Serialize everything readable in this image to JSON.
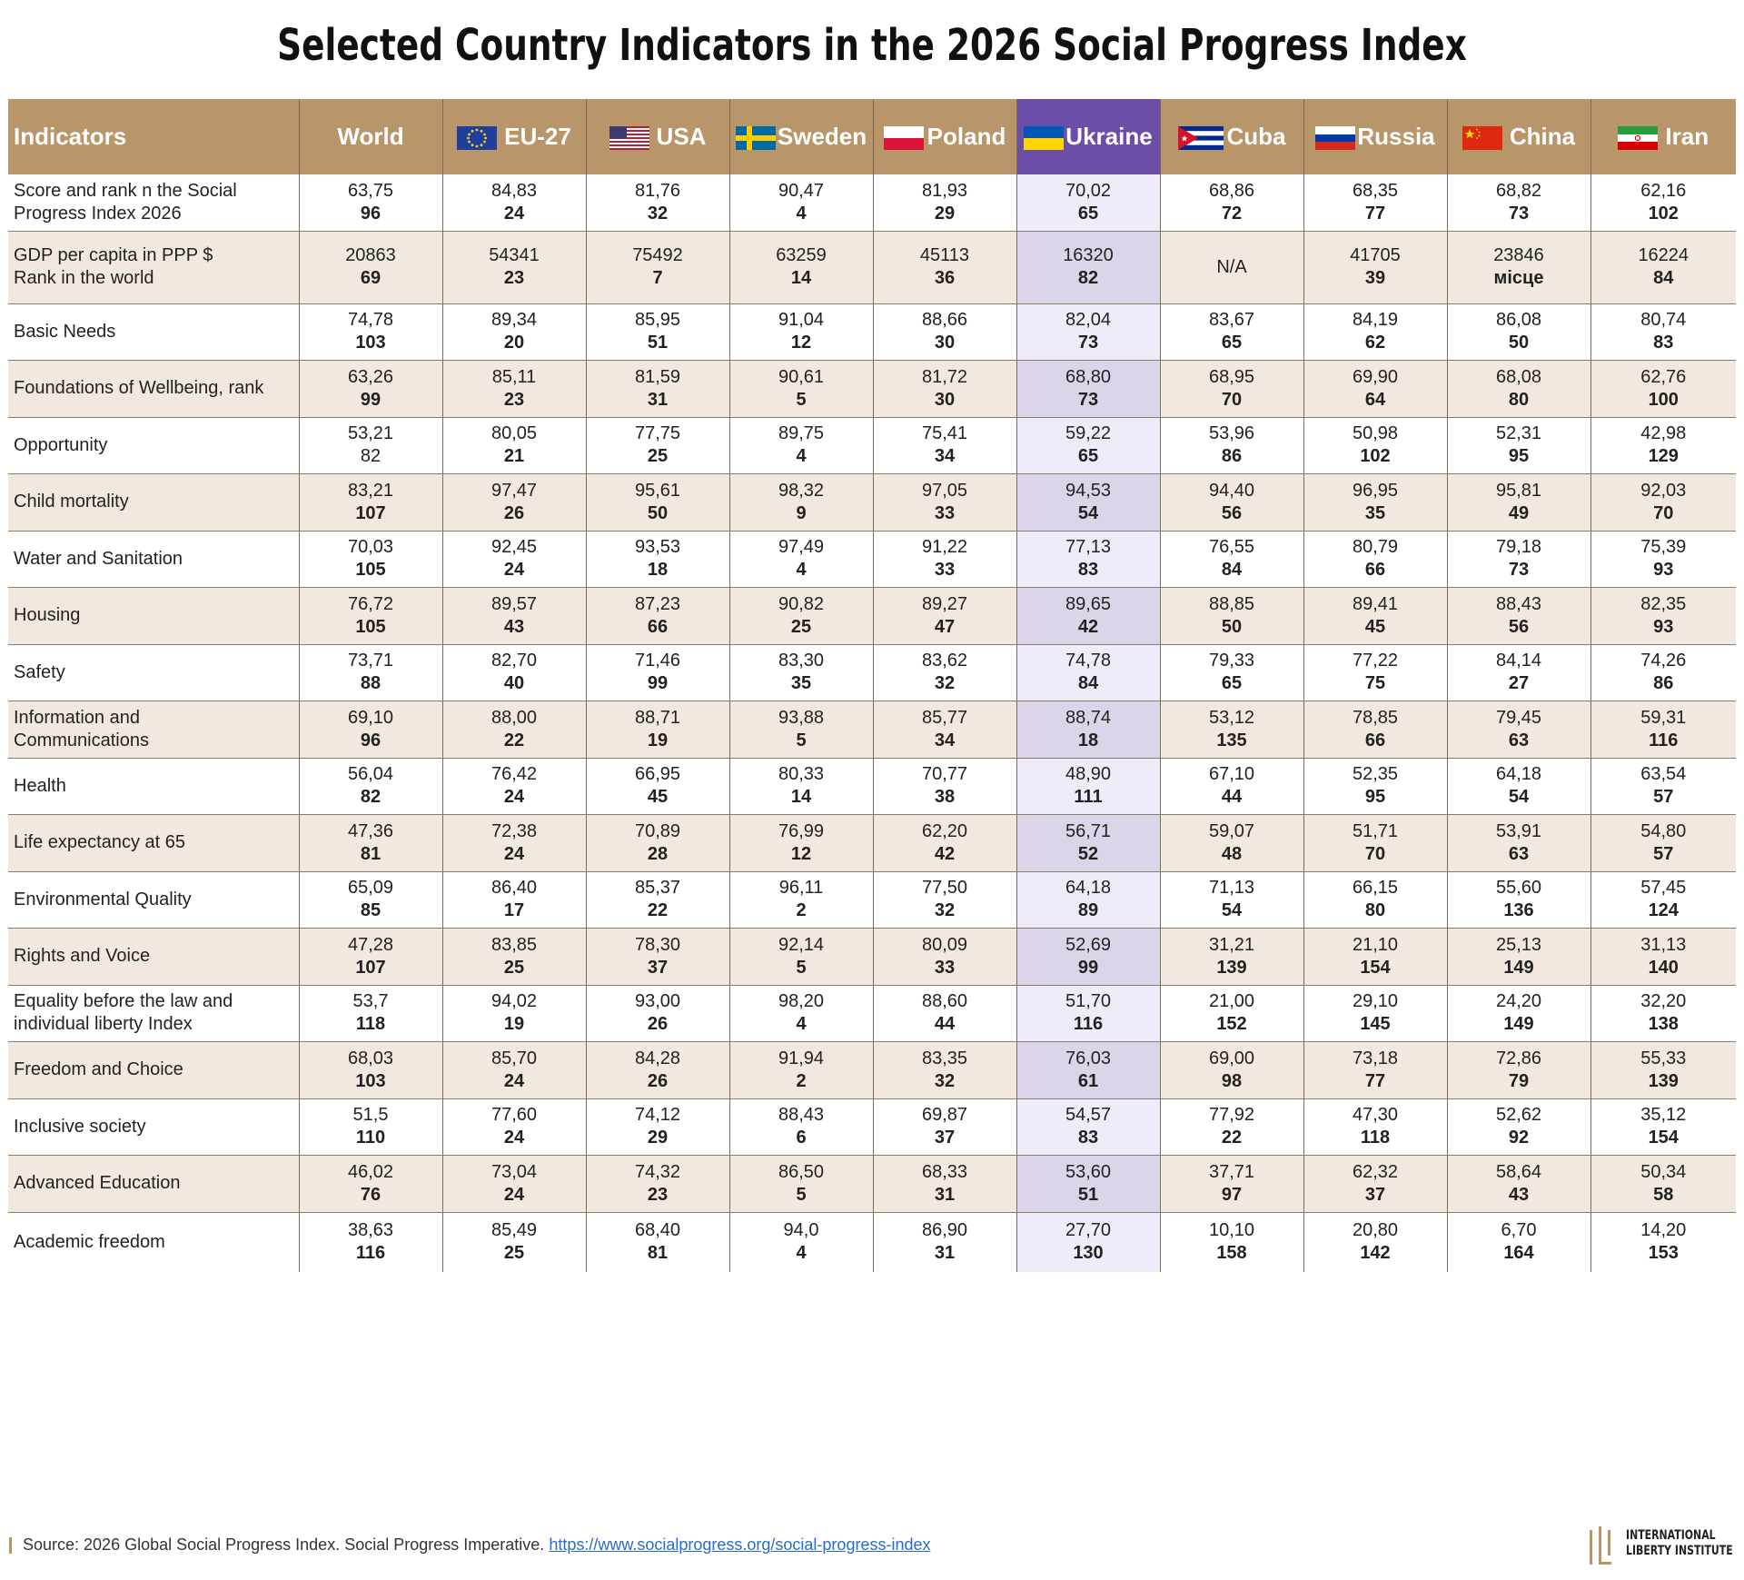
{
  "title": "Selected Country Indicators in the 2026 Social Progress Index",
  "columns": {
    "indicators": "Indicators",
    "world": "World",
    "eu": "EU-27",
    "usa": "USA",
    "sweden": "Sweden",
    "poland": "Poland",
    "ukraine": "Ukraine",
    "cuba": "Cuba",
    "russia": "Russia",
    "china": "China",
    "iran": "Iran"
  },
  "colors": {
    "header_bg": "#B8966A",
    "ukraine_header_bg": "#6B4EA8",
    "even_row_bg": "#F1E9DF",
    "ukraine_col_light": "#EFEBF8",
    "ukraine_col_dark": "#DCD5EA"
  },
  "rows": [
    {
      "l1": "Score and rank n the Social",
      "l2": "Progress Index 2026",
      "c": [
        [
          "63,75",
          "96"
        ],
        [
          "84,83",
          "24"
        ],
        [
          "81,76",
          "32"
        ],
        [
          "90,47",
          "4"
        ],
        [
          "81,93",
          "29"
        ],
        [
          "70,02",
          "65"
        ],
        [
          "68,86",
          "72"
        ],
        [
          "68,35",
          "77"
        ],
        [
          "68,82",
          "73"
        ],
        [
          "62,16",
          "102"
        ]
      ]
    },
    {
      "l1": "GDP per capita in PPP $",
      "l2": "Rank in the world",
      "c": [
        [
          "20863",
          "69"
        ],
        [
          "54341",
          "23"
        ],
        [
          "75492",
          "7"
        ],
        [
          "63259",
          "14"
        ],
        [
          "45113",
          "36"
        ],
        [
          "16320",
          "82"
        ],
        [
          "N/A",
          ""
        ],
        [
          "41705",
          "39"
        ],
        [
          "23846",
          "місце"
        ],
        [
          "16224",
          "84"
        ]
      ]
    },
    {
      "l1": "Basic Needs",
      "l2": "",
      "c": [
        [
          "74,78",
          "103"
        ],
        [
          "89,34",
          "20"
        ],
        [
          "85,95",
          "51"
        ],
        [
          "91,04",
          "12"
        ],
        [
          "88,66",
          "30"
        ],
        [
          "82,04",
          "73"
        ],
        [
          "83,67",
          "65"
        ],
        [
          "84,19",
          "62"
        ],
        [
          "86,08",
          "50"
        ],
        [
          "80,74",
          "83"
        ]
      ]
    },
    {
      "l1": "Foundations of Wellbeing, rank",
      "l2": "",
      "c": [
        [
          "63,26",
          "99"
        ],
        [
          "85,11",
          "23"
        ],
        [
          "81,59",
          "31"
        ],
        [
          "90,61",
          "5"
        ],
        [
          "81,72",
          "30"
        ],
        [
          "68,80",
          "73"
        ],
        [
          "68,95",
          "70"
        ],
        [
          "69,90",
          "64"
        ],
        [
          "68,08",
          "80"
        ],
        [
          "62,76",
          "100"
        ]
      ]
    },
    {
      "l1": "Opportunity",
      "l2": "",
      "c": [
        [
          "53,21",
          "82"
        ],
        [
          "80,05",
          "21"
        ],
        [
          "77,75",
          "25"
        ],
        [
          "89,75",
          "4"
        ],
        [
          "75,41",
          "34"
        ],
        [
          "59,22",
          "65"
        ],
        [
          "53,96",
          "86"
        ],
        [
          "50,98",
          "102"
        ],
        [
          "52,31",
          "95"
        ],
        [
          "42,98",
          "129"
        ]
      ]
    },
    {
      "l1": "Child mortality",
      "l2": "",
      "c": [
        [
          "83,21",
          "107"
        ],
        [
          "97,47",
          "26"
        ],
        [
          "95,61",
          "50"
        ],
        [
          "98,32",
          "9"
        ],
        [
          "97,05",
          "33"
        ],
        [
          "94,53",
          "54"
        ],
        [
          "94,40",
          "56"
        ],
        [
          "96,95",
          "35"
        ],
        [
          "95,81",
          "49"
        ],
        [
          "92,03",
          "70"
        ]
      ]
    },
    {
      "l1": "Water and Sanitation",
      "l2": "",
      "c": [
        [
          "70,03",
          "105"
        ],
        [
          "92,45",
          "24"
        ],
        [
          "93,53",
          "18"
        ],
        [
          "97,49",
          "4"
        ],
        [
          "91,22",
          "33"
        ],
        [
          "77,13",
          "83"
        ],
        [
          "76,55",
          "84"
        ],
        [
          "80,79",
          "66"
        ],
        [
          "79,18",
          "73"
        ],
        [
          "75,39",
          "93"
        ]
      ]
    },
    {
      "l1": "Housing",
      "l2": "",
      "c": [
        [
          "76,72",
          "105"
        ],
        [
          "89,57",
          "43"
        ],
        [
          "87,23",
          "66"
        ],
        [
          "90,82",
          "25"
        ],
        [
          "89,27",
          "47"
        ],
        [
          "89,65",
          "42"
        ],
        [
          "88,85",
          "50"
        ],
        [
          "89,41",
          "45"
        ],
        [
          "88,43",
          "56"
        ],
        [
          "82,35",
          "93"
        ]
      ]
    },
    {
      "l1": "Safety",
      "l2": "",
      "c": [
        [
          "73,71",
          "88"
        ],
        [
          "82,70",
          "40"
        ],
        [
          "71,46",
          "99"
        ],
        [
          "83,30",
          "35"
        ],
        [
          "83,62",
          "32"
        ],
        [
          "74,78",
          "84"
        ],
        [
          "79,33",
          "65"
        ],
        [
          "77,22",
          "75"
        ],
        [
          "84,14",
          "27"
        ],
        [
          "74,26",
          "86"
        ]
      ]
    },
    {
      "l1": "Information and",
      "l2": "Communications",
      "c": [
        [
          "69,10",
          "96"
        ],
        [
          "88,00",
          "22"
        ],
        [
          "88,71",
          "19"
        ],
        [
          "93,88",
          "5"
        ],
        [
          "85,77",
          "34"
        ],
        [
          "88,74",
          "18"
        ],
        [
          "53,12",
          "135"
        ],
        [
          "78,85",
          "66"
        ],
        [
          "79,45",
          "63"
        ],
        [
          "59,31",
          "116"
        ]
      ]
    },
    {
      "l1": "Health",
      "l2": "",
      "c": [
        [
          "56,04",
          "82"
        ],
        [
          "76,42",
          "24"
        ],
        [
          "66,95",
          "45"
        ],
        [
          "80,33",
          "14"
        ],
        [
          "70,77",
          "38"
        ],
        [
          "48,90",
          "111"
        ],
        [
          "67,10",
          "44"
        ],
        [
          "52,35",
          "95"
        ],
        [
          "64,18",
          "54"
        ],
        [
          "63,54",
          "57"
        ]
      ]
    },
    {
      "l1": "Life expectancy at 65",
      "l2": "",
      "c": [
        [
          "47,36",
          "81"
        ],
        [
          "72,38",
          "24"
        ],
        [
          "70,89",
          "28"
        ],
        [
          "76,99",
          "12"
        ],
        [
          "62,20",
          "42"
        ],
        [
          "56,71",
          "52"
        ],
        [
          "59,07",
          "48"
        ],
        [
          "51,71",
          "70"
        ],
        [
          "53,91",
          "63"
        ],
        [
          "54,80",
          "57"
        ]
      ]
    },
    {
      "l1": "Environmental Quality",
      "l2": "",
      "c": [
        [
          "65,09",
          "85"
        ],
        [
          "86,40",
          "17"
        ],
        [
          "85,37",
          "22"
        ],
        [
          "96,11",
          "2"
        ],
        [
          "77,50",
          "32"
        ],
        [
          "64,18",
          "89"
        ],
        [
          "71,13",
          "54"
        ],
        [
          "66,15",
          "80"
        ],
        [
          "55,60",
          "136"
        ],
        [
          "57,45",
          "124"
        ]
      ]
    },
    {
      "l1": "Rights and Voice",
      "l2": "",
      "c": [
        [
          "47,28",
          "107"
        ],
        [
          "83,85",
          "25"
        ],
        [
          "78,30",
          "37"
        ],
        [
          "92,14",
          "5"
        ],
        [
          "80,09",
          "33"
        ],
        [
          "52,69",
          "99"
        ],
        [
          "31,21",
          "139"
        ],
        [
          "21,10",
          "154"
        ],
        [
          "25,13",
          "149"
        ],
        [
          "31,13",
          "140"
        ]
      ]
    },
    {
      "l1": "Equality before the law and",
      "l2": "individual liberty Index",
      "c": [
        [
          "53,7",
          "118"
        ],
        [
          "94,02",
          "19"
        ],
        [
          "93,00",
          "26"
        ],
        [
          "98,20",
          "4"
        ],
        [
          "88,60",
          "44"
        ],
        [
          "51,70",
          "116"
        ],
        [
          "21,00",
          "152"
        ],
        [
          "29,10",
          "145"
        ],
        [
          "24,20",
          "149"
        ],
        [
          "32,20",
          "138"
        ]
      ]
    },
    {
      "l1": "Freedom and Choice",
      "l2": "",
      "c": [
        [
          "68,03",
          "103"
        ],
        [
          "85,70",
          "24"
        ],
        [
          "84,28",
          "26"
        ],
        [
          "91,94",
          "2"
        ],
        [
          "83,35",
          "32"
        ],
        [
          "76,03",
          "61"
        ],
        [
          "69,00",
          "98"
        ],
        [
          "73,18",
          "77"
        ],
        [
          "72,86",
          "79"
        ],
        [
          "55,33",
          "139"
        ]
      ]
    },
    {
      "l1": "Inclusive society",
      "l2": "",
      "c": [
        [
          "51,5",
          "110"
        ],
        [
          "77,60",
          "24"
        ],
        [
          "74,12",
          "29"
        ],
        [
          "88,43",
          "6"
        ],
        [
          "69,87",
          "37"
        ],
        [
          "54,57",
          "83"
        ],
        [
          "77,92",
          "22"
        ],
        [
          "47,30",
          "118"
        ],
        [
          "52,62",
          "92"
        ],
        [
          "35,12",
          "154"
        ]
      ]
    },
    {
      "l1": "Advanced Education",
      "l2": "",
      "c": [
        [
          "46,02",
          "76"
        ],
        [
          "73,04",
          "24"
        ],
        [
          "74,32",
          "23"
        ],
        [
          "86,50",
          "5"
        ],
        [
          "68,33",
          "31"
        ],
        [
          "53,60",
          "51"
        ],
        [
          "37,71",
          "97"
        ],
        [
          "62,32",
          "37"
        ],
        [
          "58,64",
          "43"
        ],
        [
          "50,34",
          "58"
        ]
      ]
    },
    {
      "l1": "Academic freedom",
      "l2": "",
      "c": [
        [
          "38,63",
          "116"
        ],
        [
          "85,49",
          "25"
        ],
        [
          "68,40",
          "81"
        ],
        [
          "94,0",
          "4"
        ],
        [
          "86,90",
          "31"
        ],
        [
          "27,70",
          "130"
        ],
        [
          "10,10",
          "158"
        ],
        [
          "20,80",
          "142"
        ],
        [
          "6,70",
          "164"
        ],
        [
          "14,20",
          "153"
        ]
      ]
    }
  ],
  "source": {
    "text": "Source: 2026 Global Social Progress Index. Social Progress Imperative.",
    "link": "https://www.socialprogress.org/social-progress-index"
  },
  "logo": {
    "line1": "INTERNATIONAL",
    "line2": "LIBERTY INSTITUTE"
  }
}
